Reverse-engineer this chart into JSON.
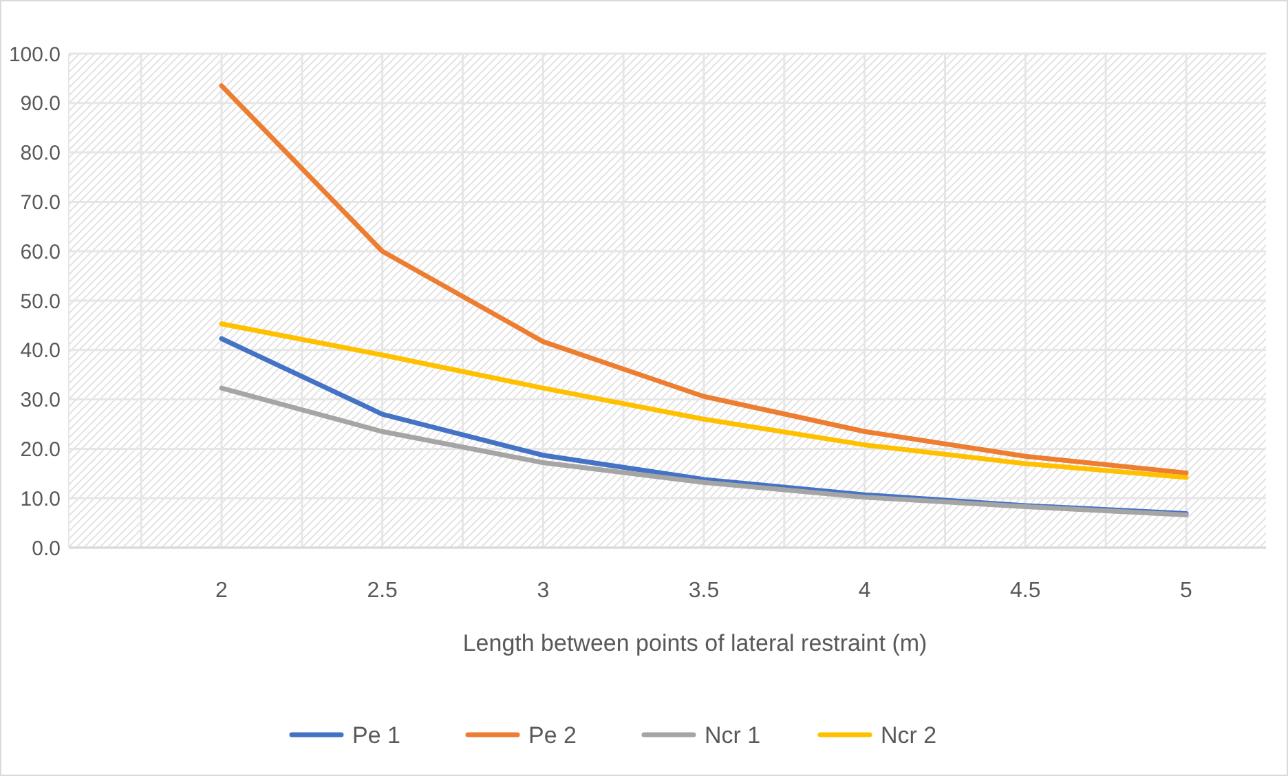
{
  "chart_data": {
    "type": "line",
    "xlabel": "Length between points of lateral restraint (m)",
    "categories": [
      "2",
      "2.5",
      "3",
      "3.5",
      "4",
      "4.5",
      "5"
    ],
    "series": [
      {
        "name": "Pe 1",
        "color": "#4472c4",
        "values": [
          42.3,
          27.0,
          18.7,
          13.8,
          10.7,
          8.5,
          6.9
        ]
      },
      {
        "name": "Pe 2",
        "color": "#ed7d31",
        "values": [
          93.5,
          60.0,
          41.7,
          30.6,
          23.5,
          18.5,
          15.1
        ]
      },
      {
        "name": "Ncr 1",
        "color": "#a5a5a5",
        "values": [
          32.3,
          23.5,
          17.2,
          13.2,
          10.2,
          8.3,
          6.6
        ]
      },
      {
        "name": "Ncr 2",
        "color": "#ffc000",
        "values": [
          45.3,
          39.0,
          32.3,
          26.0,
          20.8,
          17.0,
          14.2
        ]
      }
    ],
    "ylim": [
      0,
      100
    ],
    "yticks": [
      {
        "value": 0,
        "label": "0.0"
      },
      {
        "value": 10,
        "label": "10.0"
      },
      {
        "value": 20,
        "label": "20.0"
      },
      {
        "value": 30,
        "label": "30.0"
      },
      {
        "value": 40,
        "label": "40.0"
      },
      {
        "value": 50,
        "label": "50.0"
      },
      {
        "value": 60,
        "label": "60.0"
      },
      {
        "value": 70,
        "label": "70.0"
      },
      {
        "value": 80,
        "label": "80.0"
      },
      {
        "value": 90,
        "label": "90.0"
      },
      {
        "value": 100,
        "label": "100.0"
      }
    ],
    "grid": true,
    "legend": "bottom",
    "marker": "none",
    "line_style": "solid"
  }
}
